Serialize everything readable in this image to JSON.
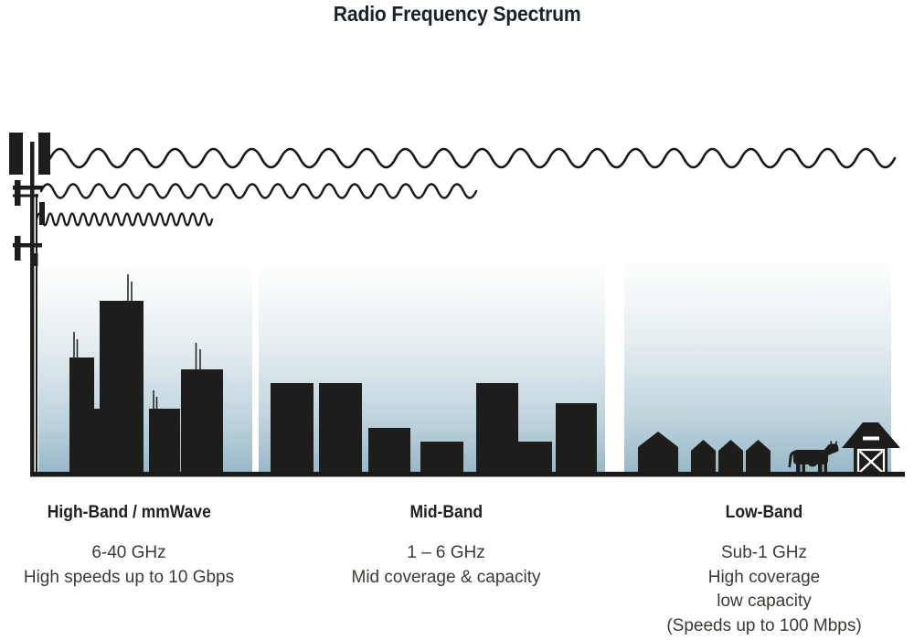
{
  "title": "Radio Frequency Spectrum",
  "bands": {
    "high": {
      "heading": "High-Band / mmWave",
      "line1": "6-40 GHz",
      "line2": "High speeds up to 10 Gbps"
    },
    "mid": {
      "heading": "Mid-Band",
      "line1": "1 – 6 GHz",
      "line2": "Mid coverage & capacity"
    },
    "low": {
      "heading": "Low-Band",
      "line1": "Sub-1 GHz",
      "line2": "High coverage",
      "line3": "low capacity",
      "line4": "(Speeds up to 100 Mbps)"
    }
  },
  "icons": {
    "tower": "cell-tower-icon",
    "waves": [
      "long-wave",
      "medium-wave",
      "short-wave"
    ],
    "high_scene": "city-skyscrapers",
    "mid_scene": "mid-rise-buildings",
    "low_scene": "houses-cow-barn"
  },
  "colors": {
    "silhouette": "#1d1d1b",
    "wave_stroke": "#161616",
    "sky_top": "#fdfefe",
    "sky_bottom": "#97b7c8",
    "title_text": "#1b222b",
    "heading_text": "#22201d",
    "body_text": "#3d3935"
  }
}
